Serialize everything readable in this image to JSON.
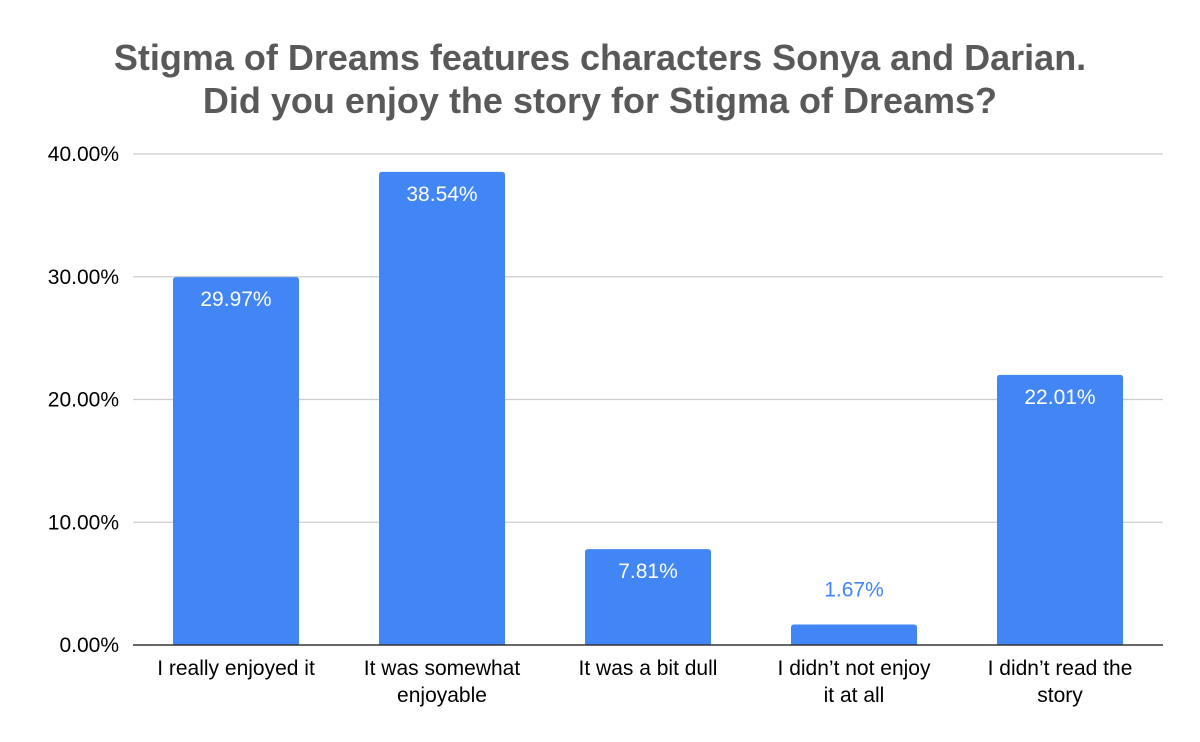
{
  "chart_data": {
    "type": "bar",
    "title": "Stigma of Dreams features characters Sonya and Darian.",
    "subtitle": "Did you enjoy the story for Stigma of Dreams?",
    "xlabel": "",
    "ylabel": "",
    "categories": [
      [
        "I really enjoyed it"
      ],
      [
        "It was somewhat",
        "enjoyable"
      ],
      [
        "It was a bit dull"
      ],
      [
        "I didn’t not enjoy",
        "it at all"
      ],
      [
        "I didn’t read the",
        "story"
      ]
    ],
    "values": [
      29.97,
      38.54,
      7.81,
      1.67,
      22.01
    ],
    "data_labels": [
      "29.97%",
      "38.54%",
      "7.81%",
      "1.67%",
      "22.01%"
    ],
    "yticks": [
      0,
      10,
      20,
      30,
      40
    ],
    "ytick_labels": [
      "0.00%",
      "10.00%",
      "20.00%",
      "30.00%",
      "40.00%"
    ],
    "ylim": [
      0,
      40
    ],
    "grid": true,
    "legend": "none",
    "colors": {
      "bar": "#4285f4",
      "label_inside": "#ffffff",
      "label_outside": "#4285f4",
      "grid": "#cccccc",
      "axis": "#333333",
      "title": "#595959"
    }
  }
}
